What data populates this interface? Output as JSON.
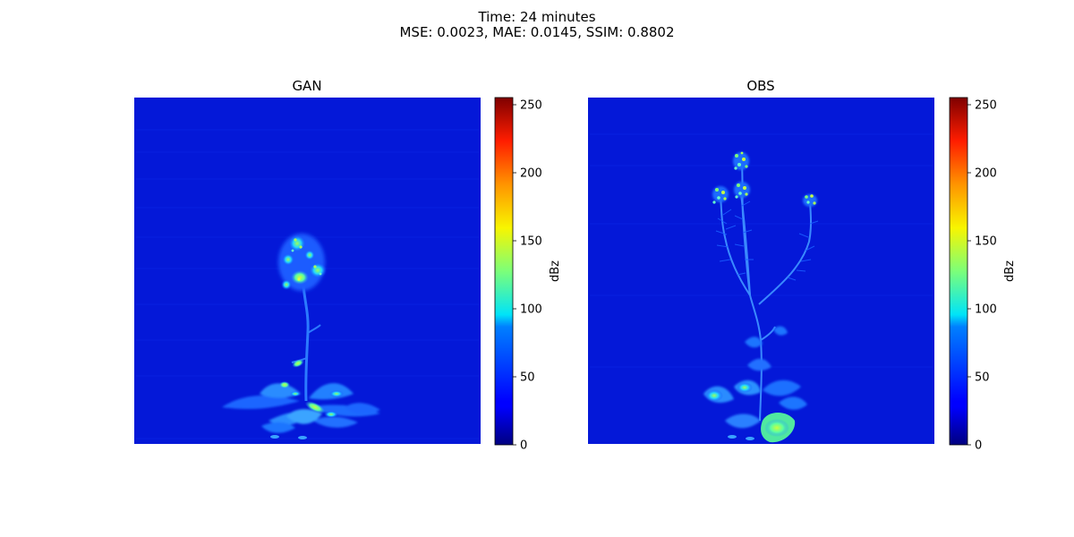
{
  "figure": {
    "title_line1": "Time: 24 minutes",
    "title_line2": "MSE: 0.0023, MAE: 0.0145, SSIM: 0.8802"
  },
  "chart_data": [
    {
      "type": "heatmap",
      "title": "GAN",
      "colormap": "jet",
      "axes_visible": false,
      "colorbar": {
        "label": "dBz",
        "range": [
          0,
          255
        ],
        "ticks": [
          0,
          50,
          100,
          150,
          200,
          250
        ],
        "tick_labels": [
          "0",
          "50",
          "100",
          "150",
          "200",
          "250"
        ]
      },
      "background_value": 18,
      "subject": "plant with one flower cluster and basal rosette leaves"
    },
    {
      "type": "heatmap",
      "title": "OBS",
      "colormap": "jet",
      "axes_visible": false,
      "colorbar": {
        "label": "dBz",
        "range": [
          0,
          255
        ],
        "ticks": [
          0,
          50,
          100,
          150,
          200,
          250
        ],
        "tick_labels": [
          "0",
          "50",
          "100",
          "150",
          "200",
          "250"
        ]
      },
      "background_value": 18,
      "subject": "plant with four flower clusters on branching stems and basal rosette leaves"
    }
  ]
}
